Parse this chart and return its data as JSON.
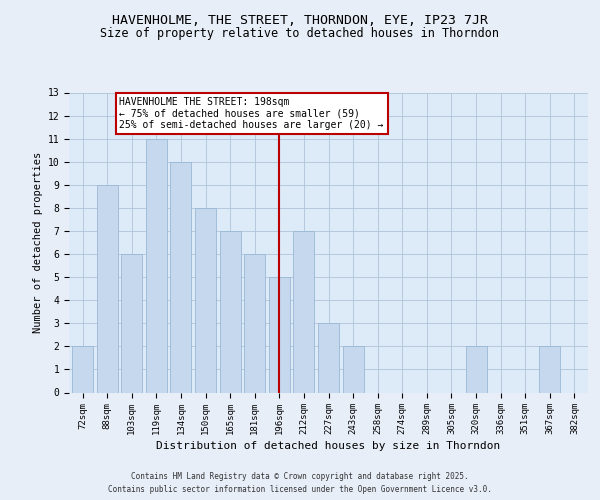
{
  "title": "HAVENHOLME, THE STREET, THORNDON, EYE, IP23 7JR",
  "subtitle": "Size of property relative to detached houses in Thorndon",
  "xlabel": "Distribution of detached houses by size in Thorndon",
  "ylabel": "Number of detached properties",
  "bins": [
    "72sqm",
    "88sqm",
    "103sqm",
    "119sqm",
    "134sqm",
    "150sqm",
    "165sqm",
    "181sqm",
    "196sqm",
    "212sqm",
    "227sqm",
    "243sqm",
    "258sqm",
    "274sqm",
    "289sqm",
    "305sqm",
    "320sqm",
    "336sqm",
    "351sqm",
    "367sqm",
    "382sqm"
  ],
  "values": [
    2,
    9,
    6,
    11,
    10,
    8,
    7,
    6,
    5,
    7,
    3,
    2,
    0,
    0,
    0,
    0,
    2,
    0,
    0,
    2,
    0
  ],
  "bar_color": "#c5d8ed",
  "bar_edge_color": "#9ab8d4",
  "grid_color": "#b0c4d8",
  "background_color": "#ddeaf8",
  "fig_background_color": "#e8eef8",
  "vline_x_index": 8,
  "vline_color": "#bb0000",
  "annotation_title": "HAVENHOLME THE STREET: 198sqm",
  "annotation_line1": "← 75% of detached houses are smaller (59)",
  "annotation_line2": "25% of semi-detached houses are larger (20) →",
  "annotation_box_color": "#bb0000",
  "footer_line1": "Contains HM Land Registry data © Crown copyright and database right 2025.",
  "footer_line2": "Contains public sector information licensed under the Open Government Licence v3.0.",
  "ylim_max": 13,
  "title_fontsize": 9.5,
  "subtitle_fontsize": 8.5,
  "xlabel_fontsize": 8,
  "ylabel_fontsize": 7.5,
  "tick_fontsize": 6.5,
  "annot_fontsize": 7,
  "footer_fontsize": 5.5
}
